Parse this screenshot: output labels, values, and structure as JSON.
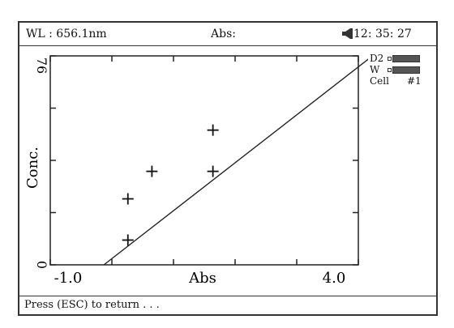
{
  "status_bar": {
    "wavelength": "WL :  656.1nm",
    "abs_label": "Abs:",
    "abs_value": "",
    "time": "12: 35: 27",
    "speaker_icon": "speaker-icon"
  },
  "side_panel": {
    "d2_label": "D2",
    "w_label": "W",
    "cell_label": "Cell",
    "cell_number": "#1"
  },
  "footer": {
    "hint": "Press  (ESC)  to return . . ."
  },
  "chart_data": {
    "type": "scatter",
    "xlabel": "Abs",
    "ylabel": "Conc.",
    "xlim": [
      -1.0,
      4.0
    ],
    "ylim": [
      0,
      76
    ],
    "x_tick_labels": [
      "-1.0",
      "4.0"
    ],
    "y_tick_labels": [
      "0",
      "76"
    ],
    "points": [
      {
        "x": 0.26,
        "y": 9
      },
      {
        "x": 0.26,
        "y": 24
      },
      {
        "x": 0.65,
        "y": 34
      },
      {
        "x": 1.64,
        "y": 34
      },
      {
        "x": 1.64,
        "y": 49
      }
    ],
    "fit_line": {
      "x1": -0.13,
      "y1": 0,
      "x2": 4.23,
      "y2": 76
    },
    "grid": false
  }
}
